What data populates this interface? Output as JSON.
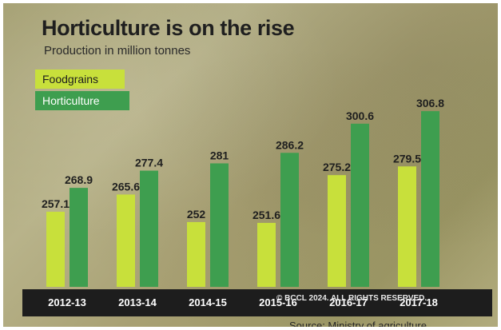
{
  "chart_data": {
    "type": "bar",
    "title": "Horticulture is on the rise",
    "subtitle": "Production in million tonnes",
    "categories": [
      "2012-13",
      "2013-14",
      "2014-15",
      "2015-16",
      "2016-17",
      "2017-18"
    ],
    "series": [
      {
        "name": "Foodgrains",
        "color": "#c8e03b",
        "values": [
          257.1,
          265.6,
          252,
          251.6,
          275.2,
          279.5
        ],
        "labels": [
          "257.1",
          "265.6",
          "252",
          "251.6",
          "275.2",
          "279.5"
        ]
      },
      {
        "name": "Horticulture",
        "color": "#3e9e4f",
        "values": [
          268.9,
          277.4,
          281,
          286.2,
          300.6,
          306.8
        ],
        "labels": [
          "268.9",
          "277.4",
          "281",
          "286.2",
          "300.6",
          "306.8"
        ]
      }
    ],
    "legend": "top-left",
    "grid": false,
    "ylim": [
      220,
      310
    ],
    "source": "Source: Ministry of agriculture",
    "copyright": "© BCCL 2024. ALL RIGHTS RESERVED."
  }
}
